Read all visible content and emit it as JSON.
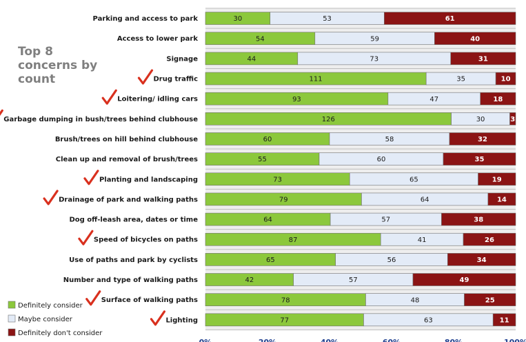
{
  "note": [
    "Top 8",
    "concerns by",
    "count"
  ],
  "chart_data": {
    "type": "bar",
    "orientation": "horizontal",
    "stacked": "100%",
    "categories": [
      "Parking and access to park",
      "Access to lower park",
      "Signage",
      "Drug traffic",
      "Loitering/ idling cars",
      "Garbage dumping in bush/trees behind clubhouse",
      "Brush/trees on hill behind clubhouse",
      "Clean up and removal of brush/trees",
      "Planting and landscaping",
      "Drainage of park and walking paths",
      "Dog off-leash area, dates or time",
      "Speed of bicycles on paths",
      "Use of paths and park by cyclists",
      "Number and type of walking paths",
      "Surface of walking paths",
      "Lighting"
    ],
    "checked": [
      false,
      false,
      false,
      true,
      true,
      true,
      false,
      false,
      true,
      true,
      false,
      true,
      false,
      false,
      true,
      true
    ],
    "series": [
      {
        "name": "Definitely consider",
        "color": "#8cc83c",
        "values": [
          30,
          54,
          44,
          111,
          93,
          126,
          60,
          55,
          73,
          79,
          64,
          87,
          65,
          42,
          78,
          77
        ]
      },
      {
        "name": "Maybe consider",
        "color": "#e3ebf7",
        "values": [
          53,
          59,
          73,
          35,
          47,
          30,
          58,
          60,
          65,
          64,
          57,
          41,
          56,
          57,
          48,
          63
        ]
      },
      {
        "name": "Definitely don't consider",
        "color": "#8b1414",
        "values": [
          61,
          40,
          31,
          10,
          18,
          3,
          32,
          35,
          19,
          14,
          38,
          26,
          34,
          49,
          25,
          11
        ]
      }
    ],
    "x_ticks": [
      "0%",
      "20%",
      "40%",
      "60%",
      "80%",
      "100%"
    ],
    "xlim": [
      0,
      100
    ],
    "legend_position": "bottom-left",
    "checkmark_color": "#d9301e"
  }
}
